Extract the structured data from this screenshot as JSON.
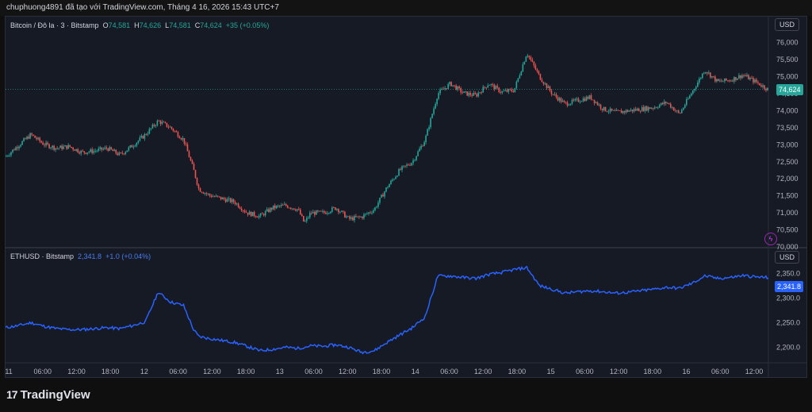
{
  "header": {
    "text": "chuphuong4891 đã tạo với TradingView.com, Tháng 4 16, 2026 15:43 UTC+7"
  },
  "pane1": {
    "legend": {
      "symbol": "Bitcoin / Đô la · 3 · Bitstamp",
      "o_label": "O",
      "o": "74,581",
      "h_label": "H",
      "h": "74,626",
      "l_label": "L",
      "l": "74,581",
      "c_label": "C",
      "c": "74,624",
      "change": "+35 (+0.05%)"
    },
    "currency": "USD",
    "last_price": "74,624",
    "bolt_icon": "lightning-icon"
  },
  "pane2": {
    "legend": {
      "symbol": "ETHUSD · Bitstamp",
      "value": "2,341.8",
      "change": "+1.0 (+0.04%)"
    },
    "currency": "USD",
    "last_price": "2,341.8"
  },
  "footer": {
    "brand": "TradingView",
    "logo_icon": "tradingview-logo-icon",
    "logo_glyph": "17"
  },
  "colors": {
    "up": "#26a69a",
    "down": "#ef5350",
    "eth_line": "#2962ff",
    "background": "#161a25"
  },
  "chart_data": [
    {
      "type": "candlestick",
      "series": [
        {
          "name": "Bitcoin / Đô la · 3 · Bitstamp"
        }
      ],
      "y_ticks": [
        "70,000",
        "70,500",
        "71,000",
        "71,500",
        "72,000",
        "72,500",
        "73,000",
        "73,500",
        "74,000",
        "74,500",
        "75,000",
        "75,500",
        "76,000"
      ],
      "ylim": [
        70000,
        76250
      ],
      "x_ticks": [
        "11",
        "06:00",
        "12:00",
        "18:00",
        "12",
        "06:00",
        "12:00",
        "18:00",
        "13",
        "06:00",
        "12:00",
        "18:00",
        "14",
        "06:00",
        "12:00",
        "18:00",
        "15",
        "06:00",
        "12:00",
        "18:00",
        "16",
        "06:00",
        "12:00"
      ],
      "anchors": [
        [
          0,
          72650
        ],
        [
          1,
          72980
        ],
        [
          2,
          73300
        ],
        [
          3,
          73020
        ],
        [
          4,
          72900
        ],
        [
          5,
          72950
        ],
        [
          6,
          72780
        ],
        [
          7,
          72820
        ],
        [
          8,
          72900
        ],
        [
          9,
          72700
        ],
        [
          10,
          72980
        ],
        [
          11,
          73300
        ],
        [
          12,
          73700
        ],
        [
          13,
          73500
        ],
        [
          14,
          73150
        ],
        [
          14.8,
          72250
        ],
        [
          15.2,
          71700
        ],
        [
          16,
          71520
        ],
        [
          17,
          71420
        ],
        [
          18,
          71320
        ],
        [
          19,
          71000
        ],
        [
          20,
          70900
        ],
        [
          21,
          71150
        ],
        [
          22,
          71220
        ],
        [
          23,
          71100
        ],
        [
          23.5,
          70700
        ],
        [
          24,
          71000
        ],
        [
          25,
          71000
        ],
        [
          26,
          71150
        ],
        [
          27,
          70820
        ],
        [
          28,
          70880
        ],
        [
          29,
          71100
        ],
        [
          30,
          71750
        ],
        [
          31,
          72250
        ],
        [
          32,
          72500
        ],
        [
          33,
          73150
        ],
        [
          34,
          74500
        ],
        [
          35,
          74800
        ],
        [
          36,
          74520
        ],
        [
          37,
          74450
        ],
        [
          38,
          74800
        ],
        [
          39,
          74550
        ],
        [
          40,
          74600
        ],
        [
          41,
          75700
        ],
        [
          42,
          75000
        ],
        [
          43,
          74500
        ],
        [
          44,
          74200
        ],
        [
          45,
          74300
        ],
        [
          46,
          74400
        ],
        [
          47,
          74050
        ],
        [
          48,
          73950
        ],
        [
          49,
          74000
        ],
        [
          50,
          74050
        ],
        [
          51,
          74100
        ],
        [
          52,
          74250
        ],
        [
          53,
          73900
        ],
        [
          54,
          74550
        ],
        [
          55,
          75200
        ],
        [
          56,
          74850
        ],
        [
          57,
          74900
        ],
        [
          58,
          75050
        ],
        [
          59,
          74850
        ],
        [
          60,
          74624
        ]
      ]
    },
    {
      "type": "line",
      "series": [
        {
          "name": "ETHUSD · Bitstamp"
        }
      ],
      "y_ticks": [
        "2,200.0",
        "2,250.0",
        "2,300.0",
        "2,350.0"
      ],
      "ylim": [
        2175,
        2380
      ],
      "x_ticks": [
        "11",
        "06:00",
        "12:00",
        "18:00",
        "12",
        "06:00",
        "12:00",
        "18:00",
        "13",
        "06:00",
        "12:00",
        "18:00",
        "14",
        "06:00",
        "12:00",
        "18:00",
        "15",
        "06:00",
        "12:00",
        "18:00",
        "16",
        "06:00",
        "12:00"
      ],
      "anchors": [
        [
          0,
          2240
        ],
        [
          1,
          2244
        ],
        [
          2,
          2250
        ],
        [
          3,
          2243
        ],
        [
          4,
          2238
        ],
        [
          5,
          2236
        ],
        [
          6,
          2236
        ],
        [
          7,
          2238
        ],
        [
          8,
          2240
        ],
        [
          9,
          2238
        ],
        [
          10,
          2244
        ],
        [
          11,
          2252
        ],
        [
          12,
          2312
        ],
        [
          13,
          2292
        ],
        [
          14,
          2285
        ],
        [
          14.8,
          2235
        ],
        [
          15.2,
          2222
        ],
        [
          16,
          2218
        ],
        [
          17,
          2214
        ],
        [
          18,
          2210
        ],
        [
          19,
          2202
        ],
        [
          20,
          2193
        ],
        [
          21,
          2196
        ],
        [
          22,
          2200
        ],
        [
          23,
          2198
        ],
        [
          24,
          2203
        ],
        [
          25,
          2202
        ],
        [
          26,
          2205
        ],
        [
          27,
          2200
        ],
        [
          28,
          2190
        ],
        [
          29,
          2193
        ],
        [
          30,
          2210
        ],
        [
          31,
          2225
        ],
        [
          32,
          2240
        ],
        [
          33,
          2262
        ],
        [
          34,
          2345
        ],
        [
          35,
          2345
        ],
        [
          36,
          2342
        ],
        [
          37,
          2340
        ],
        [
          38,
          2348
        ],
        [
          39,
          2352
        ],
        [
          40,
          2358
        ],
        [
          41,
          2362
        ],
        [
          42,
          2325
        ],
        [
          43,
          2318
        ],
        [
          44,
          2310
        ],
        [
          45,
          2313
        ],
        [
          46,
          2315
        ],
        [
          47,
          2313
        ],
        [
          48,
          2310
        ],
        [
          49,
          2312
        ],
        [
          50,
          2315
        ],
        [
          51,
          2318
        ],
        [
          52,
          2322
        ],
        [
          53,
          2320
        ],
        [
          54,
          2330
        ],
        [
          55,
          2345
        ],
        [
          56,
          2340
        ],
        [
          57,
          2342
        ],
        [
          58,
          2346
        ],
        [
          59,
          2343
        ],
        [
          60,
          2341.8
        ]
      ]
    }
  ]
}
